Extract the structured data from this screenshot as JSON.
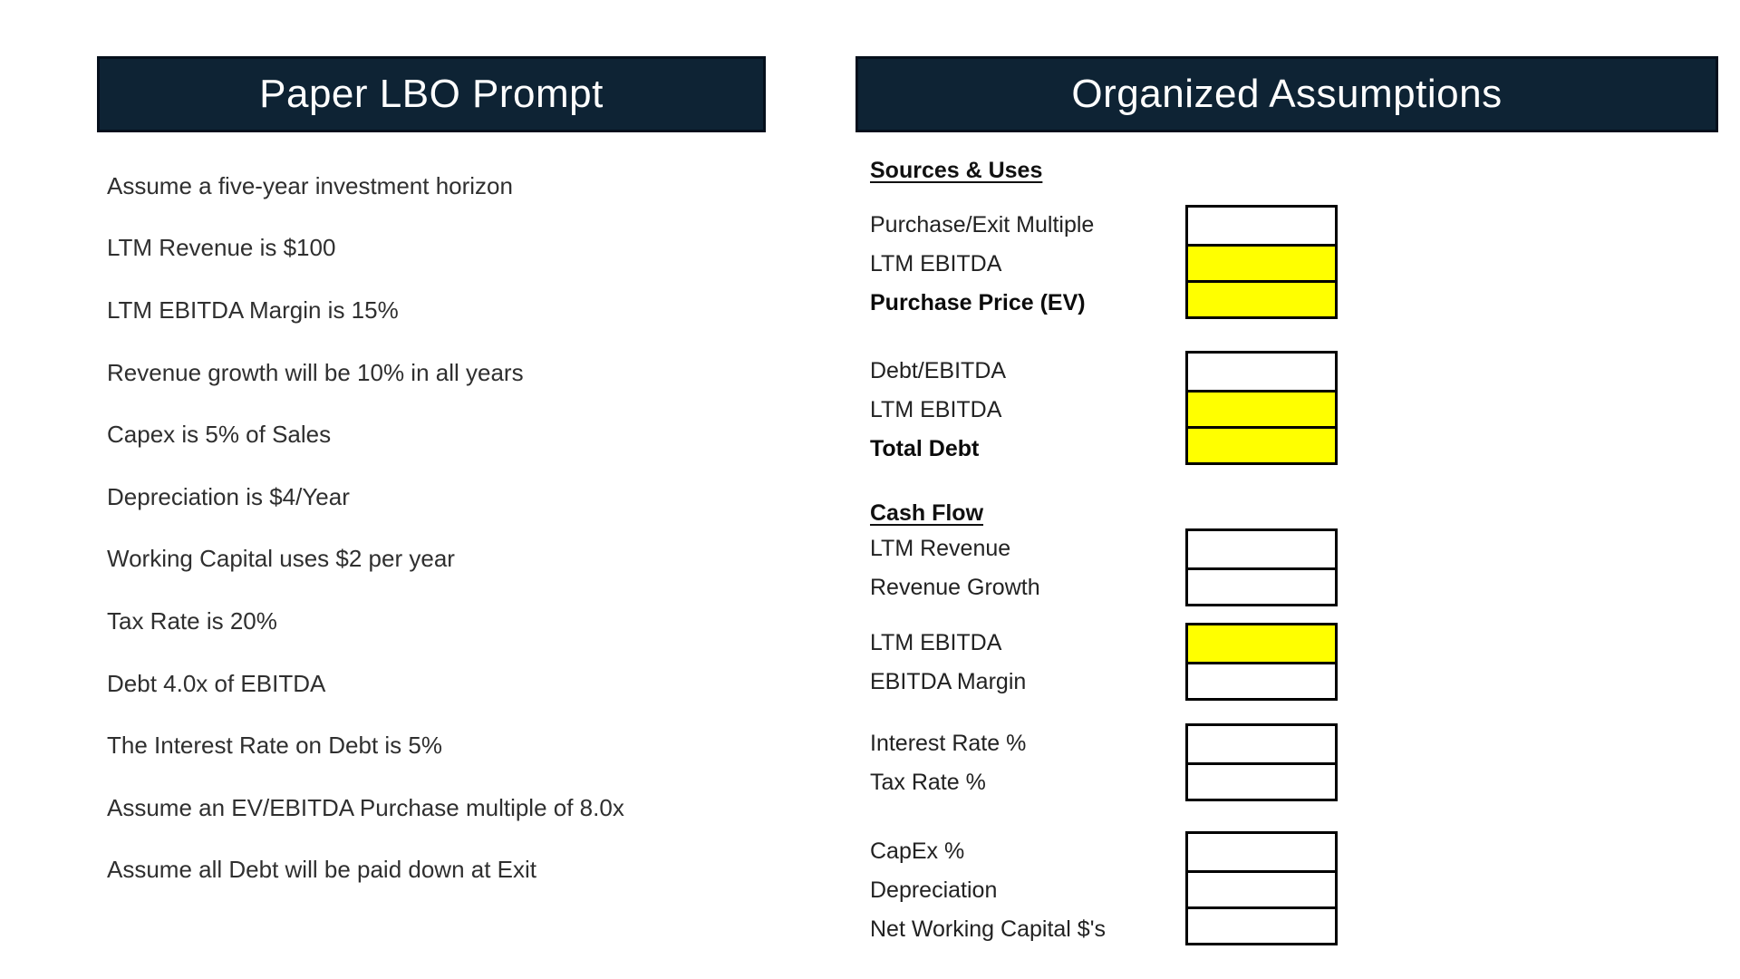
{
  "colors": {
    "navy": "#0e2334",
    "navy-border": "#05101c",
    "yellow": "#ffff00",
    "box-border": "#000000"
  },
  "left": {
    "title": "Paper LBO Prompt",
    "items": [
      "Assume a five-year investment horizon",
      "LTM Revenue is $100",
      "LTM EBITDA Margin is 15%",
      "Revenue growth will be 10% in all years",
      "Capex is 5% of Sales",
      "Depreciation is $4/Year",
      "Working Capital uses $2 per year",
      "Tax Rate is 20%",
      "Debt 4.0x of EBITDA",
      "The Interest Rate on Debt is 5%",
      "Assume an EV/EBITDA Purchase multiple of 8.0x",
      "Assume all Debt will be paid down at Exit"
    ]
  },
  "right": {
    "title": "Organized Assumptions",
    "sections": [
      {
        "heading": "Sources & Uses",
        "groups": [
          {
            "rows": [
              {
                "label": "Purchase/Exit Multiple",
                "style": "regular",
                "fill": "white"
              },
              {
                "label": "LTM EBITDA",
                "style": "regular",
                "fill": "yellow"
              },
              {
                "label": "Purchase Price (EV)",
                "style": "bold",
                "fill": "yellow"
              }
            ]
          },
          {
            "rows": [
              {
                "label": "Debt/EBITDA",
                "style": "regular",
                "fill": "white"
              },
              {
                "label": "LTM EBITDA",
                "style": "regular",
                "fill": "yellow"
              },
              {
                "label": "Total Debt",
                "style": "bold",
                "fill": "yellow"
              }
            ]
          }
        ]
      },
      {
        "heading": "Cash Flow",
        "groups": [
          {
            "rows": [
              {
                "label": "LTM Revenue",
                "style": "regular",
                "fill": "white"
              },
              {
                "label": "Revenue Growth",
                "style": "regular",
                "fill": "white"
              }
            ]
          },
          {
            "rows": [
              {
                "label": "LTM EBITDA",
                "style": "regular",
                "fill": "yellow"
              },
              {
                "label": "EBITDA Margin",
                "style": "regular",
                "fill": "white"
              }
            ]
          },
          {
            "rows": [
              {
                "label": "Interest Rate %",
                "style": "regular",
                "fill": "white"
              },
              {
                "label": "Tax Rate %",
                "style": "regular",
                "fill": "white"
              }
            ]
          },
          {
            "rows": [
              {
                "label": "CapEx %",
                "style": "regular",
                "fill": "white"
              },
              {
                "label": "Depreciation",
                "style": "regular",
                "fill": "white"
              },
              {
                "label": "Net Working Capital $'s",
                "style": "regular",
                "fill": "white"
              }
            ]
          }
        ]
      }
    ]
  }
}
